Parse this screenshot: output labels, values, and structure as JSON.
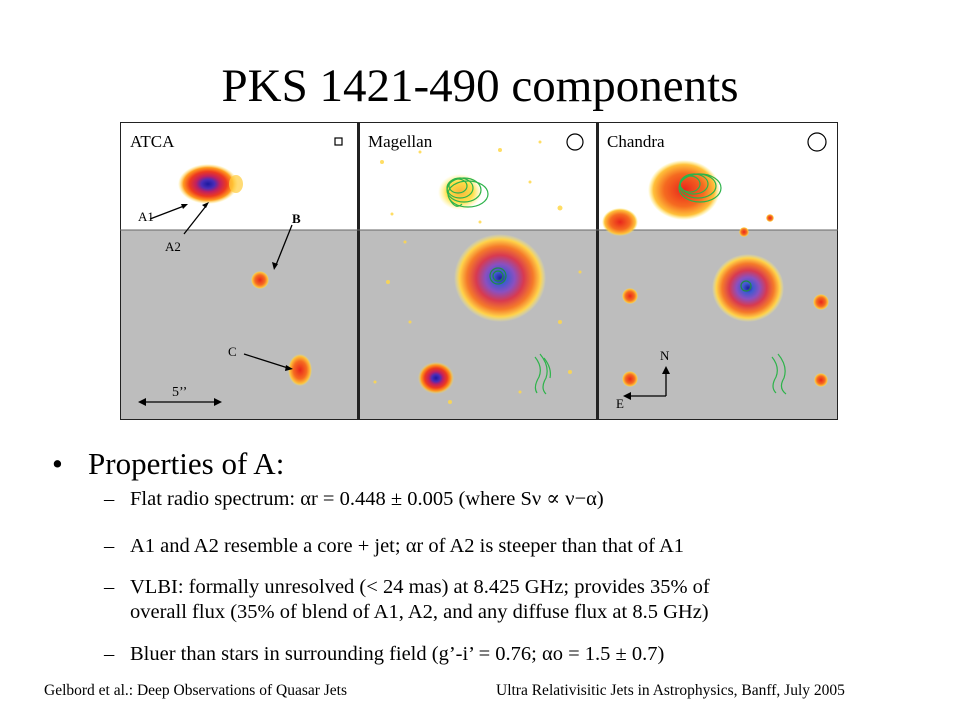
{
  "slide": {
    "title": "PKS 1421-490 components"
  },
  "figure": {
    "panels": [
      {
        "label": "ATCA"
      },
      {
        "label": "Magellan"
      },
      {
        "label": "Chandra"
      }
    ],
    "annotations": {
      "a1": "A1",
      "a2": "A2",
      "b": "B",
      "c": "C",
      "scale": "5’’",
      "north": "N",
      "east": "E"
    }
  },
  "body": {
    "bullet": "Properties of A:",
    "items": [
      {
        "text": "Flat radio spectrum: αr = 0.448 ± 0.005 (where Sν ∝ ν−α)"
      },
      {
        "text": "A1 and A2 resemble a core + jet; αr of A2 is steeper than that of A1"
      },
      {
        "line1": "VLBI: formally unresolved (< 24 mas) at 8.425 GHz; provides 35% of",
        "line2": "overall flux (35% of blend of A1, A2, and any diffuse flux at 8.5 GHz)"
      },
      {
        "text": "Bluer than stars in surrounding field (g’-i’ = 0.76; αo = 1.5 ± 0.7)"
      }
    ]
  },
  "footer": {
    "left": "Gelbord et al.: Deep Observations of Quasar Jets",
    "right": "Ultra Relativisitic Jets in Astrophysics, Banff, July 2005"
  },
  "colors": {
    "panel_top": "#ffffff",
    "panel_bottom": "#bdbdbd",
    "contour": "#2db34a"
  }
}
